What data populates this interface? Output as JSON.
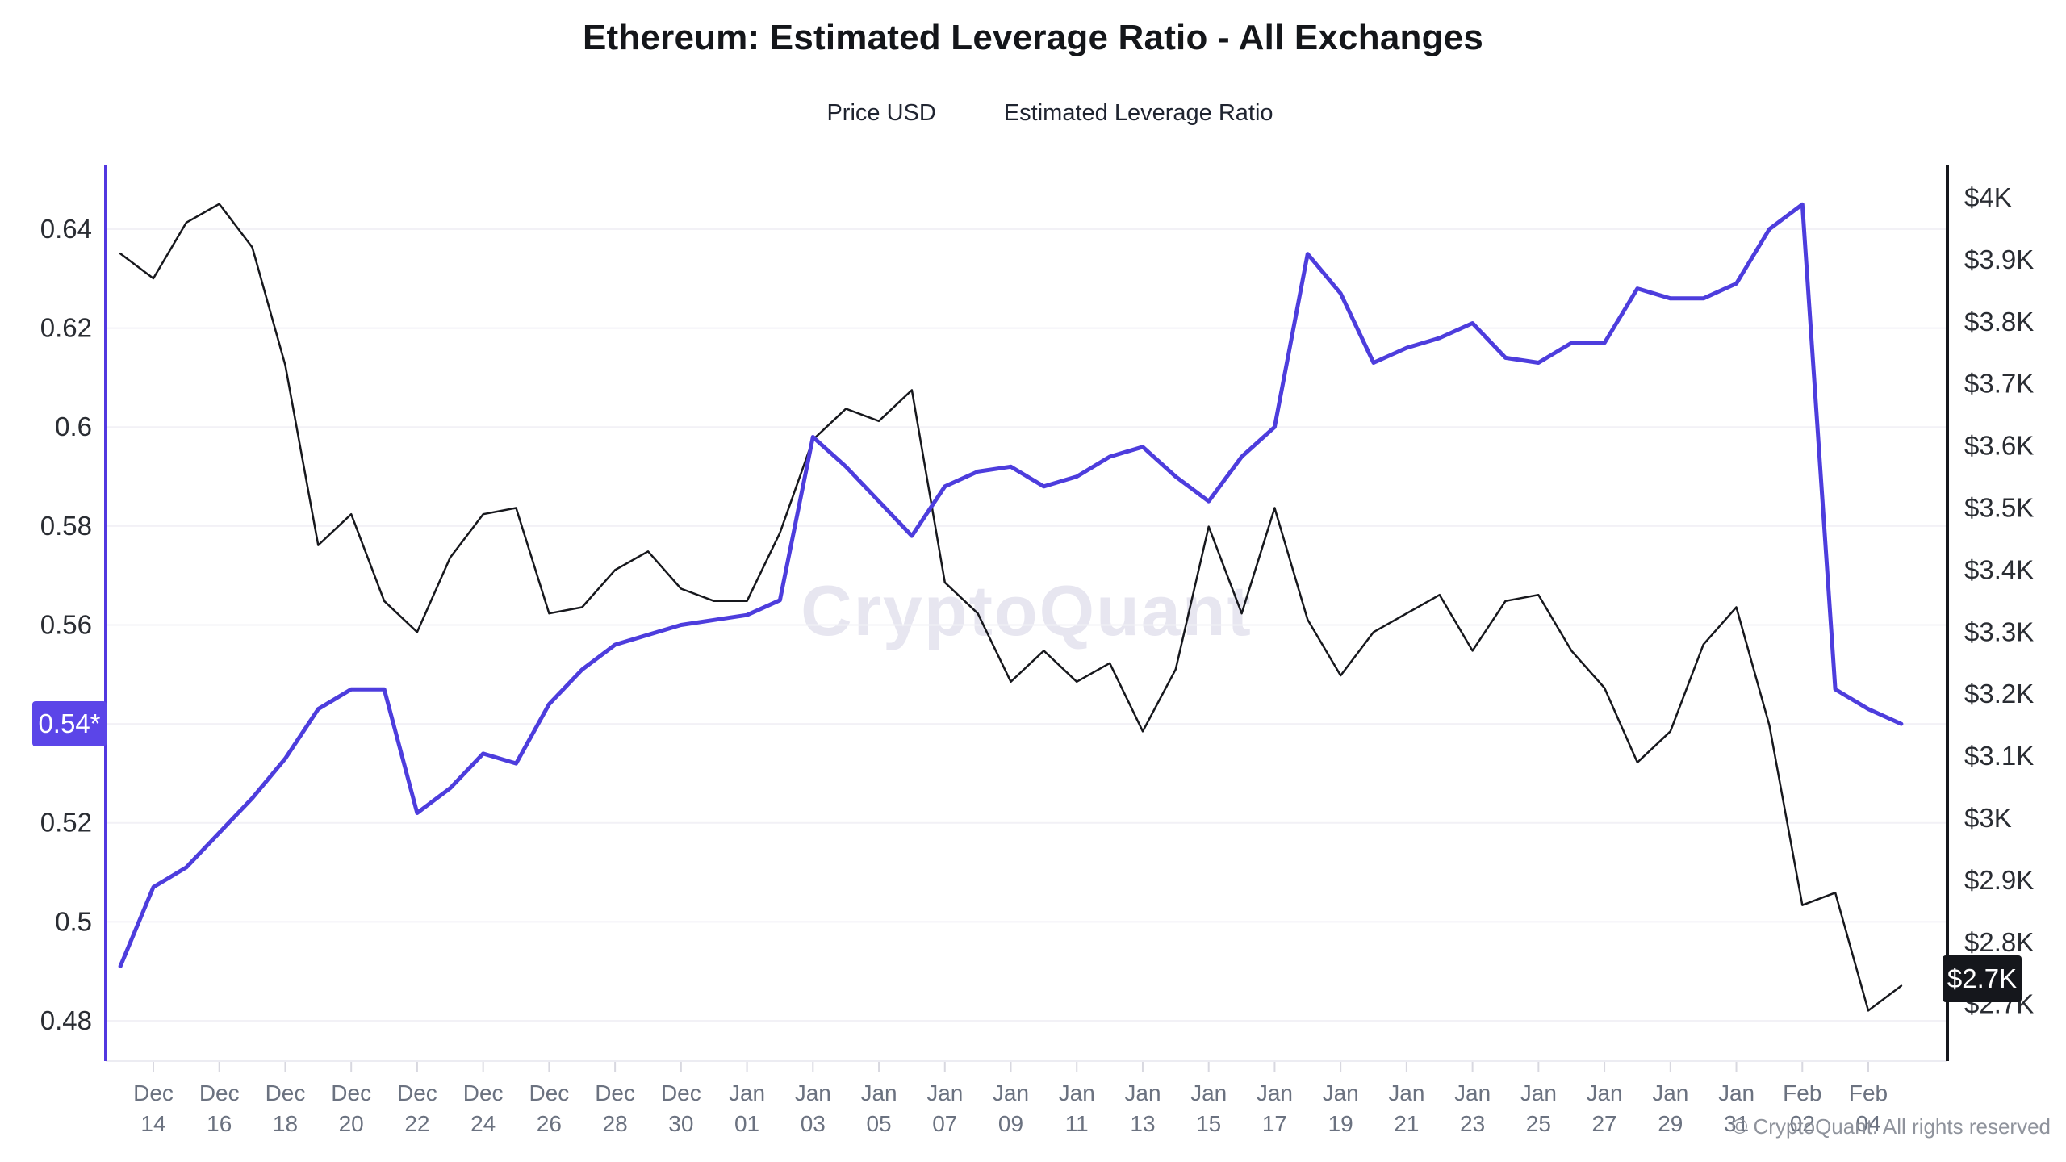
{
  "title": "Ethereum: Estimated Leverage Ratio - All Exchanges",
  "legend": {
    "items": [
      {
        "label": "Price USD",
        "color": "#17181d"
      },
      {
        "label": "Estimated Leverage Ratio",
        "color": "#4d3ddd"
      }
    ]
  },
  "watermark": "CryptoQuant",
  "copyright": "© CryptoQuant. All rights reserved",
  "colors": {
    "accent_purple": "#5238e0",
    "badge_purple": "#5b45e8",
    "line_purple": "#4d3ddd",
    "line_black": "#17181d",
    "axis_black": "#15171c",
    "gridline": "#f2f1f6",
    "x_label_gray": "#6b7280"
  },
  "left_axis": {
    "gridline_values": [
      0.64,
      0.62,
      0.6,
      0.58,
      0.56,
      0.54,
      0.52,
      0.5,
      0.48
    ],
    "tick_labels": [
      {
        "label": "0.64",
        "value": 0.64
      },
      {
        "label": "0.62",
        "value": 0.62
      },
      {
        "label": "0.6",
        "value": 0.6
      },
      {
        "label": "0.58",
        "value": 0.58
      },
      {
        "label": "0.56",
        "value": 0.56
      },
      {
        "label": "0.52",
        "value": 0.52
      },
      {
        "label": "0.5",
        "value": 0.5
      },
      {
        "label": "0.48",
        "value": 0.48
      }
    ],
    "badge": {
      "label": "0.54*",
      "value": 0.54
    }
  },
  "right_axis": {
    "tick_labels": [
      {
        "label": "$4K",
        "value": 4.0
      },
      {
        "label": "$3.9K",
        "value": 3.9
      },
      {
        "label": "$3.8K",
        "value": 3.8
      },
      {
        "label": "$3.7K",
        "value": 3.7
      },
      {
        "label": "$3.6K",
        "value": 3.6
      },
      {
        "label": "$3.5K",
        "value": 3.5
      },
      {
        "label": "$3.4K",
        "value": 3.4
      },
      {
        "label": "$3.3K",
        "value": 3.3
      },
      {
        "label": "$3.2K",
        "value": 3.2
      },
      {
        "label": "$3.1K",
        "value": 3.1
      },
      {
        "label": "$3K",
        "value": 3.0
      },
      {
        "label": "$2.9K",
        "value": 2.9
      },
      {
        "label": "$2.8K",
        "value": 2.8
      },
      {
        "label": "$2.7K",
        "value": 2.7
      }
    ],
    "badge": {
      "label": "$2.7K",
      "value": 2.73
    }
  },
  "chart_data": {
    "type": "line",
    "title": "Ethereum: Estimated Leverage Ratio - All Exchanges",
    "x": [
      "Dec 13",
      "Dec 14",
      "Dec 15",
      "Dec 16",
      "Dec 17",
      "Dec 18",
      "Dec 19",
      "Dec 20",
      "Dec 21",
      "Dec 22",
      "Dec 23",
      "Dec 24",
      "Dec 25",
      "Dec 26",
      "Dec 27",
      "Dec 28",
      "Dec 29",
      "Dec 30",
      "Dec 31",
      "Jan 01",
      "Jan 02",
      "Jan 03",
      "Jan 04",
      "Jan 05",
      "Jan 06",
      "Jan 07",
      "Jan 08",
      "Jan 09",
      "Jan 10",
      "Jan 11",
      "Jan 12",
      "Jan 13",
      "Jan 14",
      "Jan 15",
      "Jan 16",
      "Jan 17",
      "Jan 18",
      "Jan 19",
      "Jan 20",
      "Jan 21",
      "Jan 22",
      "Jan 23",
      "Jan 24",
      "Jan 25",
      "Jan 26",
      "Jan 27",
      "Jan 28",
      "Jan 29",
      "Jan 30",
      "Jan 31",
      "Feb 01",
      "Feb 02",
      "Feb 03",
      "Feb 04",
      "Feb 05"
    ],
    "x_tick_step": 2,
    "x_first_tick_index": 1,
    "series": [
      {
        "name": "Price USD",
        "axis": "right",
        "unit": "$K",
        "color": "#17181d",
        "stroke_width": 2.5,
        "values": [
          3.91,
          3.87,
          3.96,
          3.99,
          3.92,
          3.73,
          3.44,
          3.49,
          3.35,
          3.3,
          3.42,
          3.49,
          3.5,
          3.33,
          3.34,
          3.4,
          3.43,
          3.37,
          3.35,
          3.35,
          3.46,
          3.61,
          3.66,
          3.64,
          3.69,
          3.38,
          3.33,
          3.22,
          3.27,
          3.22,
          3.25,
          3.14,
          3.24,
          3.47,
          3.33,
          3.5,
          3.32,
          3.23,
          3.3,
          3.33,
          3.36,
          3.27,
          3.35,
          3.36,
          3.27,
          3.21,
          3.09,
          3.14,
          3.28,
          3.34,
          3.15,
          2.86,
          2.88,
          2.69,
          2.73
        ]
      },
      {
        "name": "Estimated Leverage Ratio",
        "axis": "left",
        "unit": "ratio",
        "color": "#4d3ddd",
        "stroke_width": 5,
        "values": [
          0.491,
          0.507,
          0.511,
          0.518,
          0.525,
          0.533,
          0.543,
          0.547,
          0.547,
          0.522,
          0.527,
          0.534,
          0.532,
          0.544,
          0.551,
          0.556,
          0.558,
          0.56,
          0.561,
          0.562,
          0.565,
          0.598,
          0.592,
          0.585,
          0.578,
          0.588,
          0.591,
          0.592,
          0.588,
          0.59,
          0.594,
          0.596,
          0.59,
          0.585,
          0.594,
          0.6,
          0.635,
          0.627,
          0.613,
          0.616,
          0.618,
          0.621,
          0.614,
          0.613,
          0.617,
          0.617,
          0.628,
          0.626,
          0.626,
          0.629,
          0.64,
          0.645,
          0.547,
          0.543,
          0.54
        ]
      }
    ],
    "left_ylim": [
      0.472,
      0.653
    ],
    "right_ylim": [
      2.61,
      4.04
    ],
    "grid": true,
    "legend_position": "top"
  }
}
